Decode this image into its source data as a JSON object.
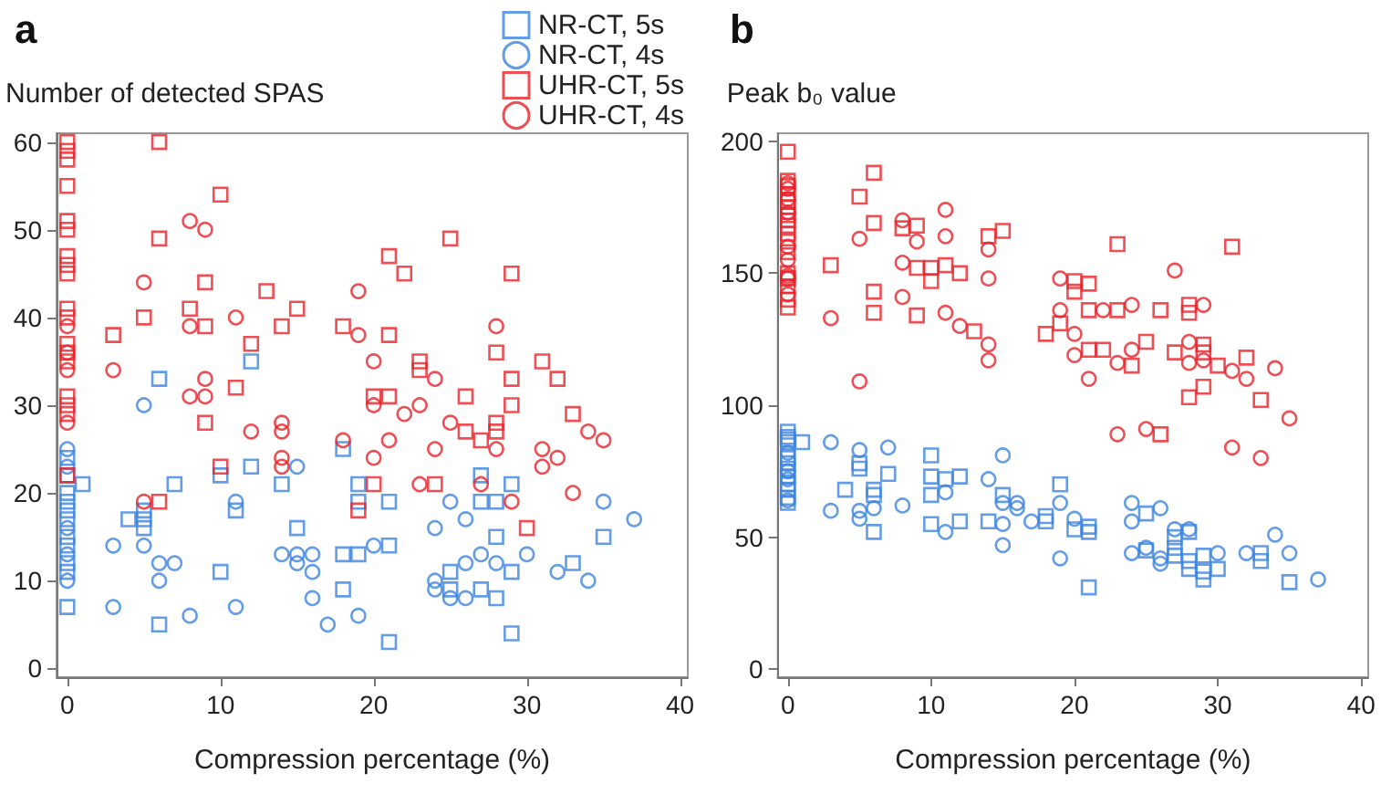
{
  "chart_data": [
    {
      "type": "scatter",
      "title": "a",
      "xlabel": "Compression percentage (%)",
      "ylabel": "Number of detected SPAS",
      "xlim": [
        -0.7,
        40.5
      ],
      "xticks": [
        0,
        10,
        20,
        30,
        40
      ],
      "ylim": [
        -1,
        61
      ],
      "yticks": [
        0,
        10,
        20,
        30,
        40,
        50,
        60
      ],
      "grid": false,
      "legend": "top right",
      "series": [
        {
          "name": "NR-CT, 5s",
          "color": "#3d85e0",
          "marker": "square",
          "x": [
            0,
            0,
            0,
            0,
            0,
            0,
            0,
            0,
            0,
            0,
            0,
            1,
            4,
            5,
            5,
            5,
            6,
            6,
            7,
            10,
            10,
            11,
            12,
            12,
            14,
            15,
            18,
            18,
            18,
            19,
            19,
            19,
            21,
            21,
            21,
            25,
            25,
            27,
            27,
            27,
            28,
            28,
            28,
            29,
            29,
            29,
            33,
            35
          ],
          "values": [
            7,
            11,
            12,
            14,
            15,
            17,
            18,
            19,
            20,
            22,
            24,
            21,
            17,
            16,
            17,
            18,
            33,
            5,
            21,
            11,
            22,
            18,
            35,
            23,
            21,
            16,
            9,
            13,
            25,
            13,
            21,
            19,
            19,
            14,
            3,
            11,
            9,
            22,
            19,
            9,
            19,
            15,
            8,
            21,
            11,
            4,
            12,
            15
          ]
        },
        {
          "name": "NR-CT, 4s",
          "color": "#3d85e0",
          "marker": "circle",
          "x": [
            0,
            0,
            0,
            0,
            0,
            3,
            3,
            5,
            5,
            6,
            6,
            7,
            8,
            11,
            11,
            14,
            15,
            15,
            15,
            16,
            16,
            16,
            17,
            19,
            20,
            24,
            24,
            24,
            25,
            25,
            26,
            26,
            26,
            27,
            28,
            30,
            32,
            34,
            35,
            37
          ],
          "values": [
            10,
            13,
            16,
            23,
            25,
            14,
            7,
            30,
            14,
            10,
            12,
            12,
            6,
            7,
            19,
            13,
            23,
            13,
            12,
            13,
            11,
            8,
            5,
            6,
            14,
            16,
            10,
            9,
            19,
            8,
            17,
            12,
            8,
            13,
            12,
            13,
            11,
            10,
            19,
            17
          ]
        },
        {
          "name": "UHR-CT, 5s",
          "color": "#e8232a",
          "marker": "square",
          "x": [
            0,
            0,
            0,
            0,
            0,
            0,
            0,
            0,
            0,
            0,
            0,
            0,
            0,
            0,
            0,
            0,
            0,
            0,
            3,
            5,
            6,
            6,
            6,
            8,
            9,
            9,
            9,
            10,
            10,
            11,
            12,
            13,
            14,
            15,
            18,
            19,
            20,
            20,
            21,
            21,
            21,
            22,
            23,
            23,
            24,
            25,
            26,
            26,
            27,
            28,
            28,
            28,
            29,
            29,
            29,
            30,
            31,
            32,
            33
          ],
          "values": [
            22,
            29,
            30,
            31,
            35,
            36,
            37,
            40,
            41,
            45,
            46,
            47,
            50,
            51,
            55,
            58,
            59,
            60,
            38,
            40,
            60,
            49,
            19,
            41,
            44,
            39,
            28,
            54,
            23,
            32,
            37,
            43,
            39,
            41,
            39,
            18,
            21,
            31,
            47,
            38,
            31,
            45,
            35,
            34,
            21,
            49,
            31,
            27,
            26,
            36,
            28,
            27,
            45,
            33,
            30,
            16,
            35,
            33,
            29
          ]
        },
        {
          "name": "UHR-CT, 4s",
          "color": "#e8232a",
          "marker": "circle",
          "x": [
            0,
            0,
            0,
            0,
            3,
            5,
            5,
            8,
            8,
            8,
            9,
            9,
            9,
            11,
            12,
            14,
            14,
            14,
            14,
            18,
            19,
            19,
            20,
            20,
            20,
            21,
            22,
            23,
            23,
            24,
            24,
            25,
            27,
            28,
            28,
            29,
            31,
            31,
            32,
            33,
            34,
            35
          ],
          "values": [
            28,
            34,
            36,
            39,
            34,
            44,
            19,
            51,
            39,
            31,
            50,
            33,
            31,
            40,
            27,
            28,
            27,
            24,
            23,
            26,
            43,
            38,
            35,
            30,
            24,
            26,
            29,
            30,
            21,
            33,
            25,
            28,
            21,
            39,
            25,
            19,
            25,
            23,
            24,
            20,
            27,
            26
          ]
        }
      ]
    },
    {
      "type": "scatter",
      "title": "b",
      "xlabel": "Compression percentage (%)",
      "ylabel": "Peak b₀ value",
      "xlim": [
        -0.7,
        40.5
      ],
      "xticks": [
        0,
        10,
        20,
        30,
        40
      ],
      "ylim": [
        -3,
        203
      ],
      "yticks": [
        0,
        50,
        100,
        150,
        200
      ],
      "grid": false,
      "series": [
        {
          "color": "#3d85e0",
          "marker": "square",
          "x": [
            0,
            0,
            0,
            0,
            0,
            0,
            0,
            0,
            0,
            0,
            0,
            0,
            1,
            4,
            5,
            5,
            6,
            6,
            6,
            7,
            10,
            10,
            10,
            10,
            11,
            12,
            12,
            14,
            15,
            18,
            18,
            19,
            20,
            21,
            21,
            21,
            25,
            25,
            27,
            27,
            27,
            28,
            28,
            28,
            29,
            29,
            29,
            30,
            33,
            33,
            35
          ],
          "values": [
            63,
            65,
            68,
            70,
            73,
            76,
            78,
            80,
            86,
            87,
            88,
            90,
            86,
            68,
            78,
            76,
            68,
            66,
            52,
            74,
            81,
            73,
            66,
            55,
            72,
            73,
            56,
            56,
            66,
            58,
            56,
            70,
            53,
            54,
            52,
            31,
            59,
            45,
            50,
            46,
            43,
            52,
            41,
            38,
            43,
            37,
            34,
            38,
            44,
            41,
            33
          ]
        },
        {
          "color": "#3d85e0",
          "marker": "circle",
          "x": [
            0,
            0,
            0,
            0,
            3,
            3,
            5,
            5,
            5,
            6,
            7,
            8,
            11,
            11,
            14,
            15,
            15,
            15,
            15,
            16,
            16,
            17,
            19,
            19,
            20,
            24,
            24,
            24,
            25,
            26,
            26,
            26,
            27,
            28,
            30,
            32,
            34,
            35,
            37
          ],
          "values": [
            64,
            72,
            75,
            82,
            86,
            60,
            83,
            60,
            57,
            61,
            84,
            62,
            67,
            52,
            72,
            81,
            63,
            55,
            47,
            63,
            61,
            56,
            63,
            42,
            57,
            63,
            56,
            44,
            46,
            61,
            42,
            40,
            53,
            53,
            44,
            44,
            51,
            44,
            34
          ]
        },
        {
          "color": "#e8232a",
          "marker": "square",
          "x": [
            0,
            0,
            0,
            0,
            0,
            0,
            0,
            0,
            0,
            0,
            0,
            0,
            0,
            0,
            0,
            0,
            0,
            3,
            5,
            6,
            6,
            6,
            6,
            8,
            9,
            9,
            9,
            10,
            10,
            11,
            12,
            13,
            14,
            15,
            18,
            19,
            20,
            20,
            21,
            21,
            21,
            22,
            23,
            23,
            24,
            25,
            26,
            26,
            27,
            28,
            28,
            28,
            29,
            29,
            29,
            30,
            31,
            32,
            33
          ],
          "values": [
            137,
            140,
            145,
            148,
            150,
            158,
            162,
            165,
            168,
            170,
            172,
            175,
            177,
            180,
            183,
            185,
            196,
            153,
            179,
            188,
            169,
            143,
            135,
            167,
            168,
            152,
            134,
            152,
            147,
            153,
            150,
            128,
            164,
            166,
            127,
            131,
            147,
            143,
            146,
            136,
            121,
            121,
            136,
            161,
            115,
            124,
            136,
            89,
            120,
            138,
            135,
            103,
            123,
            120,
            107,
            115,
            160,
            118,
            102
          ]
        },
        {
          "color": "#e8232a",
          "marker": "circle",
          "x": [
            0,
            0,
            0,
            0,
            0,
            0,
            0,
            0,
            0,
            3,
            5,
            5,
            8,
            8,
            8,
            9,
            11,
            11,
            11,
            12,
            14,
            14,
            14,
            14,
            19,
            19,
            20,
            20,
            21,
            22,
            23,
            23,
            24,
            24,
            25,
            27,
            28,
            28,
            29,
            29,
            31,
            31,
            32,
            33,
            34,
            35
          ],
          "values": [
            142,
            148,
            149,
            155,
            160,
            173,
            178,
            182,
            184,
            133,
            163,
            109,
            170,
            154,
            141,
            162,
            174,
            164,
            135,
            130,
            159,
            148,
            123,
            117,
            148,
            136,
            127,
            119,
            110,
            136,
            89,
            116,
            138,
            121,
            91,
            151,
            124,
            116,
            138,
            117,
            113,
            84,
            110,
            80,
            114,
            95
          ]
        }
      ]
    }
  ]
}
